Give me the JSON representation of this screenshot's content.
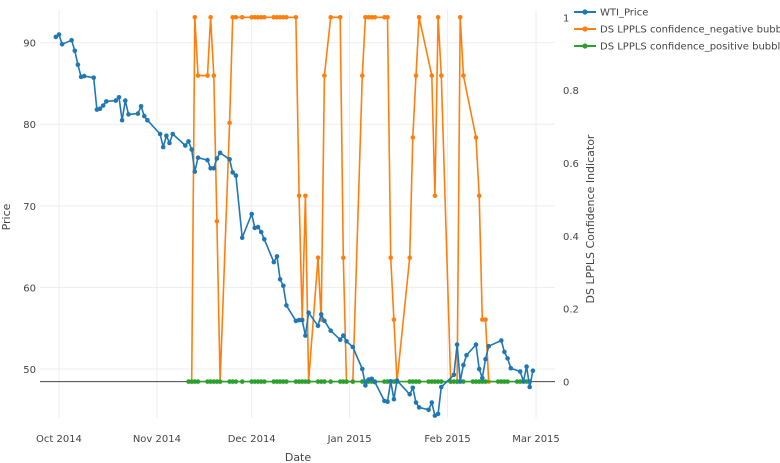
{
  "chart_data": {
    "type": "line",
    "xlabel": "Date",
    "ylabel_left": "Price",
    "ylabel_right": "DS LPPLS Confidence Indicator",
    "x_range": [
      "2014-09-25",
      "2015-03-07"
    ],
    "y_left_range": [
      44,
      94
    ],
    "y_right_range": [
      -0.1,
      1.02
    ],
    "x_ticks": [
      {
        "date": "2014-10-01",
        "label": "Oct 2014"
      },
      {
        "date": "2014-11-01",
        "label": "Nov 2014"
      },
      {
        "date": "2014-12-01",
        "label": "Dec 2014"
      },
      {
        "date": "2015-01-01",
        "label": "Jan 2015"
      },
      {
        "date": "2015-02-01",
        "label": "Feb 2015"
      },
      {
        "date": "2015-03-01",
        "label": "Mar 2015"
      }
    ],
    "y_left_ticks": [
      50,
      60,
      70,
      80,
      90
    ],
    "y_right_ticks": [
      0,
      0.2,
      0.4,
      0.6,
      0.8,
      1
    ],
    "legend_position": "top-right",
    "series": [
      {
        "name": "WTI_Price",
        "axis": "left",
        "color": "#1f77b4",
        "points": [
          [
            "2014-09-30",
            90.7
          ],
          [
            "2014-10-01",
            91.0
          ],
          [
            "2014-10-02",
            89.8
          ],
          [
            "2014-10-05",
            90.3
          ],
          [
            "2014-10-06",
            89.0
          ],
          [
            "2014-10-07",
            87.3
          ],
          [
            "2014-10-08",
            85.8
          ],
          [
            "2014-10-09",
            85.9
          ],
          [
            "2014-10-12",
            85.7
          ],
          [
            "2014-10-13",
            81.8
          ],
          [
            "2014-10-14",
            81.9
          ],
          [
            "2014-10-15",
            82.3
          ],
          [
            "2014-10-16",
            82.8
          ],
          [
            "2014-10-19",
            82.9
          ],
          [
            "2014-10-20",
            83.3
          ],
          [
            "2014-10-21",
            80.5
          ],
          [
            "2014-10-22",
            82.9
          ],
          [
            "2014-10-23",
            81.2
          ],
          [
            "2014-10-26",
            81.3
          ],
          [
            "2014-10-27",
            82.2
          ],
          [
            "2014-10-28",
            81.0
          ],
          [
            "2014-10-29",
            80.5
          ],
          [
            "2014-11-02",
            78.8
          ],
          [
            "2014-11-03",
            77.2
          ],
          [
            "2014-11-04",
            78.6
          ],
          [
            "2014-11-05",
            77.7
          ],
          [
            "2014-11-06",
            78.8
          ],
          [
            "2014-11-10",
            77.4
          ],
          [
            "2014-11-11",
            77.9
          ],
          [
            "2014-11-12",
            76.9
          ],
          [
            "2014-11-13",
            74.2
          ],
          [
            "2014-11-14",
            75.9
          ],
          [
            "2014-11-17",
            75.6
          ],
          [
            "2014-11-18",
            74.6
          ],
          [
            "2014-11-19",
            74.6
          ],
          [
            "2014-11-20",
            75.8
          ],
          [
            "2014-11-21",
            76.5
          ],
          [
            "2014-11-24",
            75.7
          ],
          [
            "2014-11-25",
            74.1
          ],
          [
            "2014-11-26",
            73.7
          ],
          [
            "2014-11-28",
            66.1
          ],
          [
            "2014-12-01",
            69.0
          ],
          [
            "2014-12-02",
            67.3
          ],
          [
            "2014-12-03",
            67.4
          ],
          [
            "2014-12-04",
            66.8
          ],
          [
            "2014-12-05",
            65.9
          ],
          [
            "2014-12-08",
            63.1
          ],
          [
            "2014-12-09",
            63.8
          ],
          [
            "2014-12-10",
            61.0
          ],
          [
            "2014-12-11",
            60.2
          ],
          [
            "2014-12-12",
            57.8
          ],
          [
            "2014-12-15",
            55.9
          ],
          [
            "2014-12-16",
            56.0
          ],
          [
            "2014-12-17",
            56.0
          ],
          [
            "2014-12-18",
            54.1
          ],
          [
            "2014-12-19",
            56.9
          ],
          [
            "2014-12-22",
            55.3
          ],
          [
            "2014-12-23",
            56.7
          ],
          [
            "2014-12-24",
            55.9
          ],
          [
            "2014-12-26",
            54.7
          ],
          [
            "2014-12-29",
            53.6
          ],
          [
            "2014-12-30",
            54.1
          ],
          [
            "2014-12-31",
            53.4
          ],
          [
            "2015-01-02",
            52.7
          ],
          [
            "2015-01-05",
            50.0
          ],
          [
            "2015-01-06",
            48.0
          ],
          [
            "2015-01-07",
            48.7
          ],
          [
            "2015-01-08",
            48.8
          ],
          [
            "2015-01-09",
            48.4
          ],
          [
            "2015-01-12",
            46.1
          ],
          [
            "2015-01-13",
            46.0
          ],
          [
            "2015-01-14",
            48.5
          ],
          [
            "2015-01-15",
            46.3
          ],
          [
            "2015-01-16",
            48.6
          ],
          [
            "2015-01-20",
            46.9
          ],
          [
            "2015-01-21",
            47.7
          ],
          [
            "2015-01-22",
            45.9
          ],
          [
            "2015-01-23",
            45.3
          ],
          [
            "2015-01-26",
            45.0
          ],
          [
            "2015-01-27",
            45.9
          ],
          [
            "2015-01-28",
            44.3
          ],
          [
            "2015-01-29",
            44.5
          ],
          [
            "2015-01-30",
            47.8
          ],
          [
            "2015-02-03",
            49.3
          ],
          [
            "2015-02-04",
            53.0
          ],
          [
            "2015-02-05",
            48.5
          ],
          [
            "2015-02-06",
            50.5
          ],
          [
            "2015-02-07",
            51.7
          ],
          [
            "2015-02-10",
            53.0
          ],
          [
            "2015-02-11",
            50.0
          ],
          [
            "2015-02-12",
            48.9
          ],
          [
            "2015-02-13",
            51.2
          ],
          [
            "2015-02-14",
            52.8
          ],
          [
            "2015-02-18",
            53.5
          ],
          [
            "2015-02-19",
            52.1
          ],
          [
            "2015-02-20",
            51.3
          ],
          [
            "2015-02-21",
            50.1
          ],
          [
            "2015-02-24",
            49.7
          ],
          [
            "2015-02-25",
            48.5
          ],
          [
            "2015-02-26",
            50.3
          ],
          [
            "2015-02-27",
            47.8
          ],
          [
            "2015-02-28",
            49.8
          ]
        ]
      },
      {
        "name": "DS LPPLS confidence_negative bubbles",
        "axis": "right",
        "color": "#ff7f0e",
        "points": [
          [
            "2014-11-12",
            0.0
          ],
          [
            "2014-11-13",
            1.0
          ],
          [
            "2014-11-14",
            0.84
          ],
          [
            "2014-11-17",
            0.84
          ],
          [
            "2014-11-18",
            1.0
          ],
          [
            "2014-11-19",
            0.84
          ],
          [
            "2014-11-20",
            0.44
          ],
          [
            "2014-11-21",
            0.0
          ],
          [
            "2014-11-24",
            0.71
          ],
          [
            "2014-11-25",
            1.0
          ],
          [
            "2014-11-26",
            1.0
          ],
          [
            "2014-11-28",
            1.0
          ],
          [
            "2014-12-01",
            1.0
          ],
          [
            "2014-12-02",
            1.0
          ],
          [
            "2014-12-03",
            1.0
          ],
          [
            "2014-12-04",
            1.0
          ],
          [
            "2014-12-05",
            1.0
          ],
          [
            "2014-12-08",
            1.0
          ],
          [
            "2014-12-09",
            1.0
          ],
          [
            "2014-12-10",
            1.0
          ],
          [
            "2014-12-11",
            1.0
          ],
          [
            "2014-12-12",
            1.0
          ],
          [
            "2014-12-15",
            1.0
          ],
          [
            "2014-12-16",
            0.51
          ],
          [
            "2014-12-17",
            0.17
          ],
          [
            "2014-12-18",
            0.51
          ],
          [
            "2014-12-19",
            0.0
          ],
          [
            "2014-12-22",
            0.34
          ],
          [
            "2014-12-23",
            0.17
          ],
          [
            "2014-12-24",
            0.84
          ],
          [
            "2014-12-26",
            1.0
          ],
          [
            "2014-12-29",
            1.0
          ],
          [
            "2014-12-30",
            0.34
          ],
          [
            "2014-12-31",
            0.0
          ],
          [
            "2015-01-02",
            0.0
          ],
          [
            "2015-01-05",
            0.84
          ],
          [
            "2015-01-06",
            1.0
          ],
          [
            "2015-01-07",
            1.0
          ],
          [
            "2015-01-08",
            1.0
          ],
          [
            "2015-01-09",
            1.0
          ],
          [
            "2015-01-12",
            1.0
          ],
          [
            "2015-01-13",
            1.0
          ],
          [
            "2015-01-14",
            0.34
          ],
          [
            "2015-01-15",
            0.17
          ],
          [
            "2015-01-16",
            0.0
          ],
          [
            "2015-01-20",
            0.34
          ],
          [
            "2015-01-21",
            0.67
          ],
          [
            "2015-01-22",
            0.84
          ],
          [
            "2015-01-23",
            1.0
          ],
          [
            "2015-01-27",
            0.84
          ],
          [
            "2015-01-28",
            0.51
          ],
          [
            "2015-01-29",
            1.0
          ],
          [
            "2015-01-30",
            0.84
          ],
          [
            "2015-02-02",
            0.0
          ],
          [
            "2015-02-04",
            0.0
          ],
          [
            "2015-02-05",
            1.0
          ],
          [
            "2015-02-06",
            0.84
          ],
          [
            "2015-02-10",
            0.67
          ],
          [
            "2015-02-11",
            0.51
          ],
          [
            "2015-02-12",
            0.17
          ],
          [
            "2015-02-13",
            0.17
          ],
          [
            "2015-02-14",
            0.0
          ]
        ]
      },
      {
        "name": "DS LPPLS confidence_positive bubbles",
        "axis": "right",
        "color": "#2ca02c",
        "points": [
          [
            "2014-11-11",
            0
          ],
          [
            "2014-11-12",
            0
          ],
          [
            "2014-11-13",
            0
          ],
          [
            "2014-11-14",
            0
          ],
          [
            "2014-11-17",
            0
          ],
          [
            "2014-11-18",
            0
          ],
          [
            "2014-11-19",
            0
          ],
          [
            "2014-11-20",
            0
          ],
          [
            "2014-11-21",
            0
          ],
          [
            "2014-11-24",
            0
          ],
          [
            "2014-11-25",
            0
          ],
          [
            "2014-11-26",
            0
          ],
          [
            "2014-11-28",
            0
          ],
          [
            "2014-12-01",
            0
          ],
          [
            "2014-12-02",
            0
          ],
          [
            "2014-12-03",
            0
          ],
          [
            "2014-12-04",
            0
          ],
          [
            "2014-12-05",
            0
          ],
          [
            "2014-12-08",
            0
          ],
          [
            "2014-12-09",
            0
          ],
          [
            "2014-12-10",
            0
          ],
          [
            "2014-12-11",
            0
          ],
          [
            "2014-12-12",
            0
          ],
          [
            "2014-12-15",
            0
          ],
          [
            "2014-12-16",
            0
          ],
          [
            "2014-12-17",
            0
          ],
          [
            "2014-12-18",
            0
          ],
          [
            "2014-12-19",
            0
          ],
          [
            "2014-12-22",
            0
          ],
          [
            "2014-12-23",
            0
          ],
          [
            "2014-12-24",
            0
          ],
          [
            "2014-12-26",
            0
          ],
          [
            "2014-12-29",
            0
          ],
          [
            "2014-12-30",
            0
          ],
          [
            "2014-12-31",
            0
          ],
          [
            "2015-01-02",
            0
          ],
          [
            "2015-01-05",
            0
          ],
          [
            "2015-01-06",
            0
          ],
          [
            "2015-01-07",
            0
          ],
          [
            "2015-01-08",
            0
          ],
          [
            "2015-01-09",
            0
          ],
          [
            "2015-01-12",
            0
          ],
          [
            "2015-01-13",
            0
          ],
          [
            "2015-01-14",
            0
          ],
          [
            "2015-01-15",
            0
          ],
          [
            "2015-01-16",
            0
          ],
          [
            "2015-01-20",
            0
          ],
          [
            "2015-01-21",
            0
          ],
          [
            "2015-01-22",
            0
          ],
          [
            "2015-01-23",
            0
          ],
          [
            "2015-01-26",
            0
          ],
          [
            "2015-01-27",
            0
          ],
          [
            "2015-01-28",
            0
          ],
          [
            "2015-01-29",
            0
          ],
          [
            "2015-01-30",
            0
          ],
          [
            "2015-02-02",
            0
          ],
          [
            "2015-02-03",
            0
          ],
          [
            "2015-02-04",
            0
          ],
          [
            "2015-02-05",
            0
          ],
          [
            "2015-02-06",
            0
          ],
          [
            "2015-02-09",
            0
          ],
          [
            "2015-02-10",
            0
          ],
          [
            "2015-02-11",
            0
          ],
          [
            "2015-02-12",
            0
          ],
          [
            "2015-02-13",
            0
          ],
          [
            "2015-02-17",
            0
          ],
          [
            "2015-02-18",
            0
          ],
          [
            "2015-02-19",
            0
          ],
          [
            "2015-02-20",
            0
          ],
          [
            "2015-02-23",
            0
          ],
          [
            "2015-02-24",
            0
          ],
          [
            "2015-02-25",
            0
          ],
          [
            "2015-02-26",
            0
          ],
          [
            "2015-02-27",
            0
          ]
        ]
      }
    ]
  }
}
